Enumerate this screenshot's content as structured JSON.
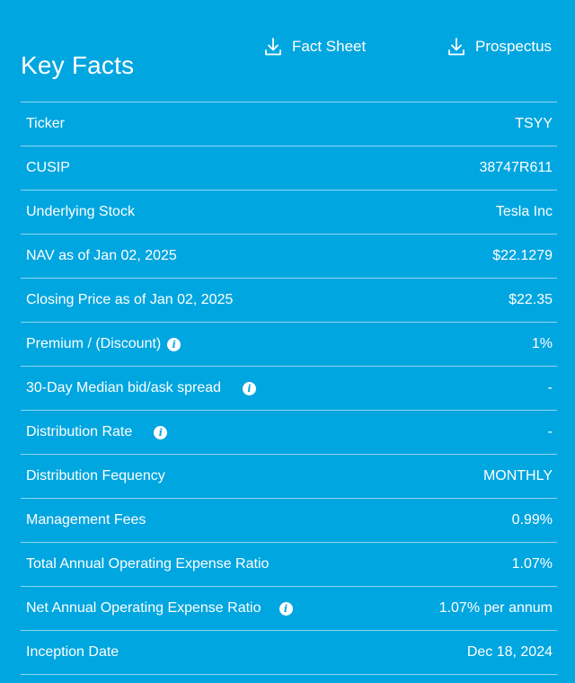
{
  "header": {
    "title": "Key Facts",
    "fact_sheet_label": "Fact Sheet",
    "prospectus_label": "Prospectus"
  },
  "rows": [
    {
      "label": "Ticker",
      "value": "TSYY",
      "info": false
    },
    {
      "label": "CUSIP",
      "value": "38747R611",
      "info": false
    },
    {
      "label": "Underlying Stock",
      "value": "Tesla Inc",
      "info": false
    },
    {
      "label": "NAV as of Jan 02, 2025",
      "value": "$22.1279",
      "info": false
    },
    {
      "label": "Closing Price as of Jan 02, 2025",
      "value": "$22.35",
      "info": false
    },
    {
      "label": "Premium / (Discount)",
      "value": "1%",
      "info": true
    },
    {
      "label": "30-Day Median bid/ask spread",
      "value": "-",
      "info": true
    },
    {
      "label": "Distribution Rate",
      "value": "-",
      "info": true
    },
    {
      "label": "Distribution Fequency",
      "value": "MONTHLY",
      "info": false
    },
    {
      "label": "Management Fees",
      "value": "0.99%",
      "info": false
    },
    {
      "label": "Total Annual Operating Expense Ratio",
      "value": "1.07%",
      "info": false
    },
    {
      "label": "Net Annual Operating Expense Ratio",
      "value": "1.07% per annum",
      "info": true
    },
    {
      "label": "Inception Date",
      "value": "Dec 18, 2024",
      "info": false
    }
  ],
  "icons": {
    "download": "download-icon",
    "info": "info-icon",
    "info_glyph": "i"
  },
  "colors": {
    "background": "#00a6e0",
    "text": "#ffffff",
    "divider": "rgba(255,255,255,0.55)"
  }
}
